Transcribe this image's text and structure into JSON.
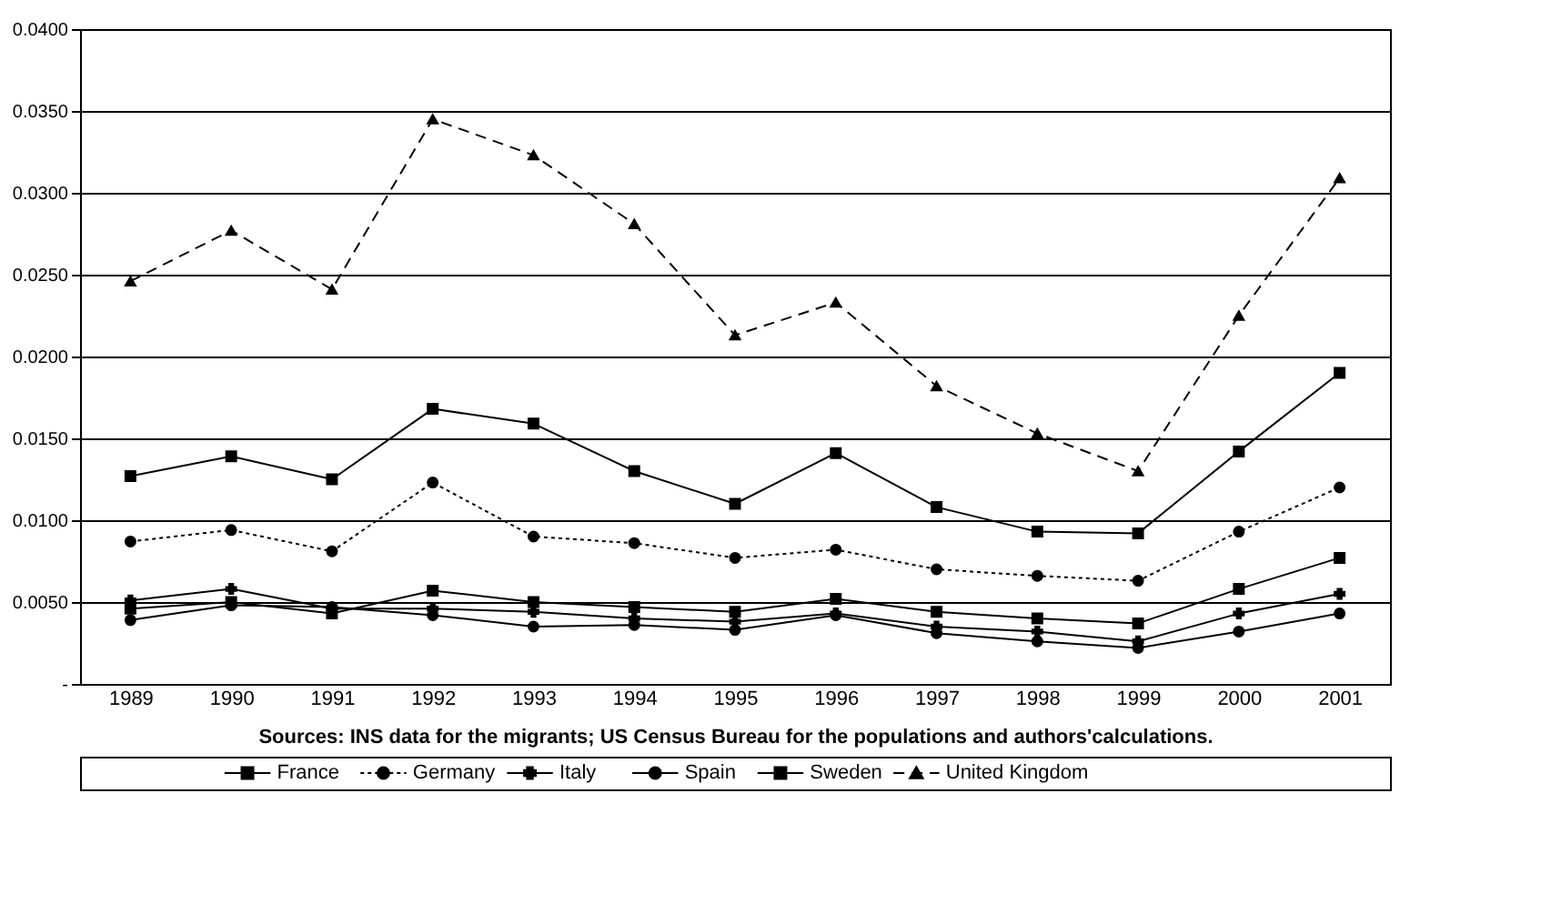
{
  "chart_data": {
    "type": "line",
    "categories": [
      "1989",
      "1990",
      "1991",
      "1992",
      "1993",
      "1994",
      "1995",
      "1996",
      "1997",
      "1998",
      "1999",
      "2000",
      "2001"
    ],
    "series": [
      {
        "name": "France",
        "color": "#000000",
        "marker": "square",
        "line_style": "solid",
        "values": [
          0.0046,
          0.005,
          0.0043,
          0.0057,
          0.005,
          0.0047,
          0.0044,
          0.0052,
          0.0044,
          0.004,
          0.0037,
          0.0058,
          0.0077
        ]
      },
      {
        "name": "Germany",
        "color": "#000000",
        "marker": "circle",
        "line_style": "dotted",
        "values": [
          0.0087,
          0.0094,
          0.0081,
          0.0123,
          0.009,
          0.0086,
          0.0077,
          0.0082,
          0.007,
          0.0066,
          0.0063,
          0.0093,
          0.012
        ]
      },
      {
        "name": "Italy",
        "color": "#000000",
        "marker": "cross",
        "line_style": "solid",
        "values": [
          0.0051,
          0.0058,
          0.0046,
          0.0046,
          0.0044,
          0.004,
          0.0038,
          0.0043,
          0.0035,
          0.0032,
          0.0026,
          0.0043,
          0.0055
        ]
      },
      {
        "name": "Spain",
        "color": "#000000",
        "marker": "circle",
        "line_style": "solid",
        "values": [
          0.0039,
          0.0048,
          0.0047,
          0.0042,
          0.0035,
          0.0036,
          0.0033,
          0.0042,
          0.0031,
          0.0026,
          0.0022,
          0.0032,
          0.0043
        ]
      },
      {
        "name": "Sweden",
        "color": "#000000",
        "marker": "square",
        "line_style": "solid",
        "values": [
          0.0127,
          0.0139,
          0.0125,
          0.0168,
          0.0159,
          0.013,
          0.011,
          0.0141,
          0.0108,
          0.0093,
          0.0092,
          0.0142,
          0.019
        ]
      },
      {
        "name": "United Kingdom",
        "color": "#000000",
        "marker": "triangle",
        "line_style": "dashed",
        "values": [
          0.0246,
          0.0277,
          0.0241,
          0.0345,
          0.0323,
          0.0281,
          0.0213,
          0.0233,
          0.0182,
          0.0153,
          0.013,
          0.0225,
          0.0309
        ]
      }
    ],
    "ylim": [
      0,
      0.04
    ],
    "yticks": [
      {
        "value": 0,
        "label": "-"
      },
      {
        "value": 0.005,
        "label": "0.0050"
      },
      {
        "value": 0.01,
        "label": "0.0100"
      },
      {
        "value": 0.015,
        "label": "0.0150"
      },
      {
        "value": 0.02,
        "label": "0.0200"
      },
      {
        "value": 0.025,
        "label": "0.0250"
      },
      {
        "value": 0.03,
        "label": "0.0300"
      },
      {
        "value": 0.035,
        "label": "0.0350"
      },
      {
        "value": 0.04,
        "label": "0.0400"
      }
    ],
    "grid": "y",
    "legend": "bottom",
    "annotations": [
      "Sources: INS data for the migrants; US Census Bureau for the populations and authors'calculations."
    ]
  }
}
